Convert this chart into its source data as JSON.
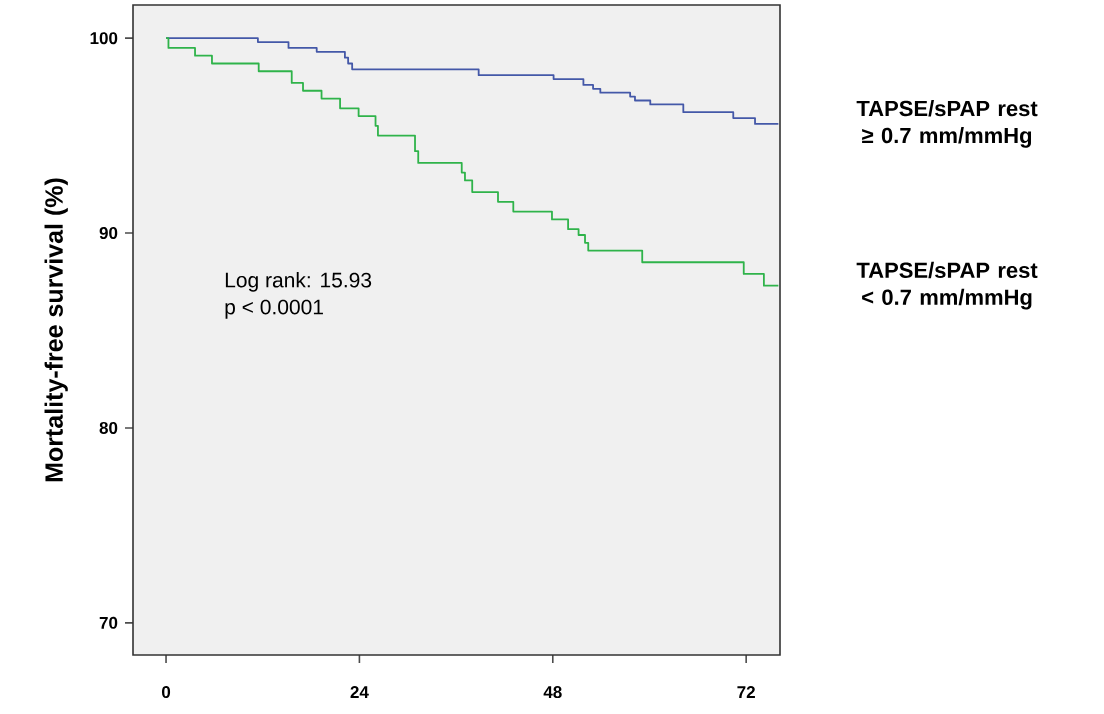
{
  "chart_data": {
    "type": "step",
    "ylabel": "Mortality-free survival (%)",
    "xlim": [
      -4.1,
      76.2
    ],
    "ylim": [
      68.35,
      101.7
    ],
    "xticks": [
      0,
      24,
      48,
      72
    ],
    "yticks": [
      70,
      80,
      90,
      100
    ],
    "annotations": [
      "Log rank: 15.93",
      "p < 0.0001"
    ],
    "series": [
      {
        "name": "TAPSE/sPAP rest ≥ 0.7 mm/mmHg",
        "color": "#4458a8",
        "x": [
          0,
          11.4,
          15.2,
          18.7,
          22.2,
          22.6,
          23.1,
          38.8,
          48.1,
          51.8,
          53.0,
          53.9,
          57.6,
          58.2,
          60.1,
          64.2,
          70.4,
          73.1,
          76.0
        ],
        "values": [
          100,
          99.8,
          99.5,
          99.3,
          99.0,
          98.7,
          98.4,
          98.1,
          97.9,
          97.6,
          97.4,
          97.2,
          97.0,
          96.8,
          96.6,
          96.2,
          95.9,
          95.6,
          95.6
        ]
      },
      {
        "name": "TAPSE/sPAP rest < 0.7 mm/mmHg",
        "color": "#2fb34a",
        "x": [
          0,
          0.3,
          3.6,
          5.7,
          11.5,
          15.6,
          17.0,
          19.3,
          21.6,
          23.9,
          26.0,
          26.3,
          30.9,
          31.3,
          36.7,
          37.1,
          38.0,
          41.2,
          43.1,
          47.9,
          49.9,
          51.2,
          52.0,
          52.4,
          59.1,
          71.7,
          74.2,
          76.0
        ],
        "values": [
          100,
          99.5,
          99.1,
          98.7,
          98.3,
          97.7,
          97.3,
          96.9,
          96.4,
          96.0,
          95.5,
          95.0,
          94.2,
          93.6,
          93.1,
          92.7,
          92.1,
          91.6,
          91.1,
          90.7,
          90.2,
          89.9,
          89.5,
          89.1,
          88.5,
          87.9,
          87.3,
          87.3
        ]
      }
    ]
  }
}
